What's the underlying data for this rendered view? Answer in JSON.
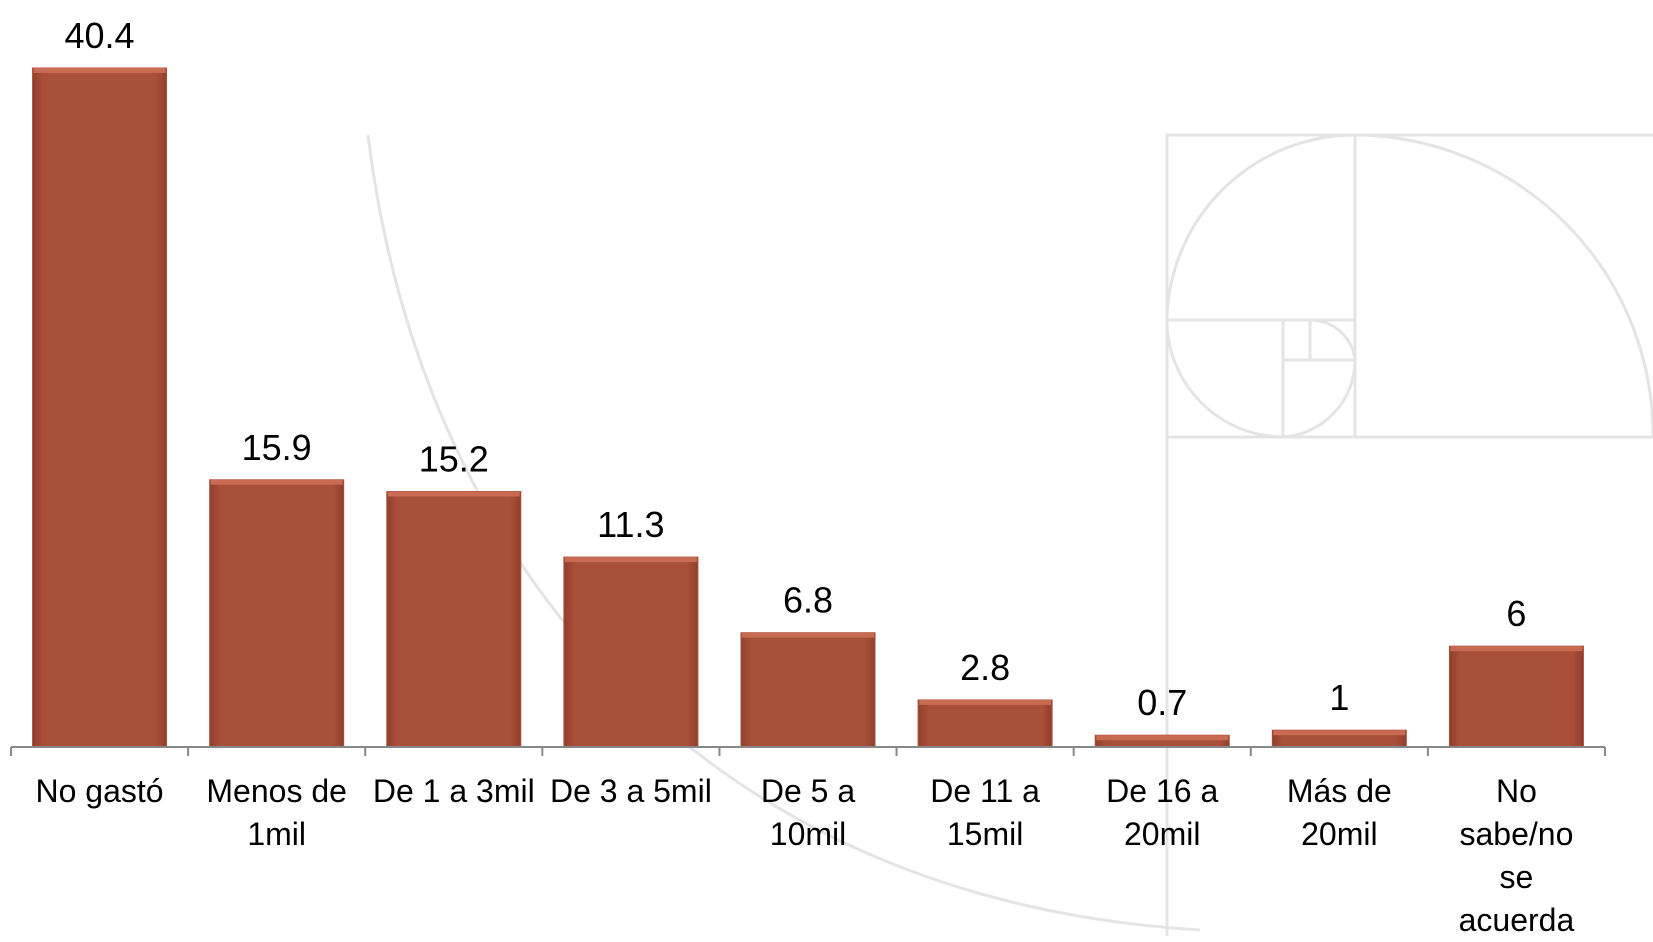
{
  "chart_data": {
    "type": "bar",
    "categories": [
      "No gastó",
      "Menos de 1mil",
      "De 1 a 3mil",
      "De 3 a 5mil",
      "De 5 a 10mil",
      "De 11 a 15mil",
      "De 16 a 20mil",
      "Más de 20mil",
      "No sabe/no se acuerda"
    ],
    "values": [
      40.4,
      15.9,
      15.2,
      11.3,
      6.8,
      2.8,
      0.7,
      1,
      6
    ],
    "color": "#a9503a"
  }
}
